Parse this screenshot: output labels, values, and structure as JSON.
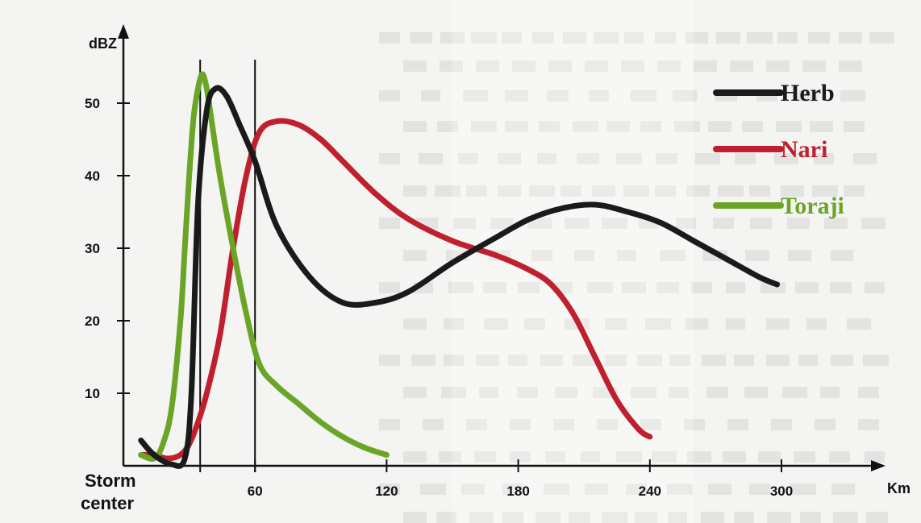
{
  "chart_data": {
    "type": "line",
    "title": "",
    "xlabel": "Km",
    "ylabel": "dBZ",
    "origin_label": "Storm center",
    "xlim": [
      0,
      310
    ],
    "ylim": [
      0,
      60
    ],
    "x_ticks": [
      60,
      120,
      180,
      240,
      300
    ],
    "y_ticks": [
      10,
      20,
      30,
      40,
      50
    ],
    "reference_lines_x": [
      35,
      60
    ],
    "legend_position": "top-right",
    "series": [
      {
        "name": "Herb",
        "color": "#1a1a1a",
        "x": [
          8,
          14,
          22,
          28,
          31,
          34,
          38,
          42,
          47,
          53,
          60,
          70,
          85,
          100,
          115,
          130,
          150,
          170,
          185,
          200,
          215,
          230,
          245,
          260,
          275,
          290,
          298
        ],
        "y": [
          3.5,
          1.5,
          0.2,
          1,
          10,
          36,
          49,
          52,
          51,
          47,
          42,
          33,
          26,
          22.5,
          22.5,
          24,
          28,
          31.5,
          34,
          35.5,
          36,
          35,
          33.5,
          31,
          28.5,
          26,
          25
        ]
      },
      {
        "name": "Nari",
        "color": "#c0202e",
        "x": [
          8,
          14,
          20,
          26,
          30,
          34,
          38,
          44,
          50,
          56,
          62,
          70,
          80,
          90,
          100,
          115,
          130,
          150,
          170,
          185,
          195,
          205,
          215,
          225,
          235,
          240
        ],
        "y": [
          1.5,
          1.5,
          1,
          1.5,
          3,
          6,
          10,
          18,
          30,
          40,
          46,
          47.5,
          47,
          45,
          42,
          37.5,
          34,
          31,
          29,
          27,
          25,
          21,
          15,
          9,
          5,
          4
        ]
      },
      {
        "name": "Toraji",
        "color": "#6aa528",
        "x": [
          8,
          14,
          18,
          22,
          26,
          28,
          30,
          32,
          34,
          36,
          38,
          40,
          44,
          50,
          56,
          62,
          70,
          80,
          90,
          100,
          110,
          120
        ],
        "y": [
          1.5,
          1,
          3,
          8,
          20,
          30,
          40,
          48,
          52,
          54,
          52,
          48,
          40,
          30,
          21,
          14,
          11,
          8.5,
          6,
          4,
          2.5,
          1.5
        ]
      }
    ]
  }
}
